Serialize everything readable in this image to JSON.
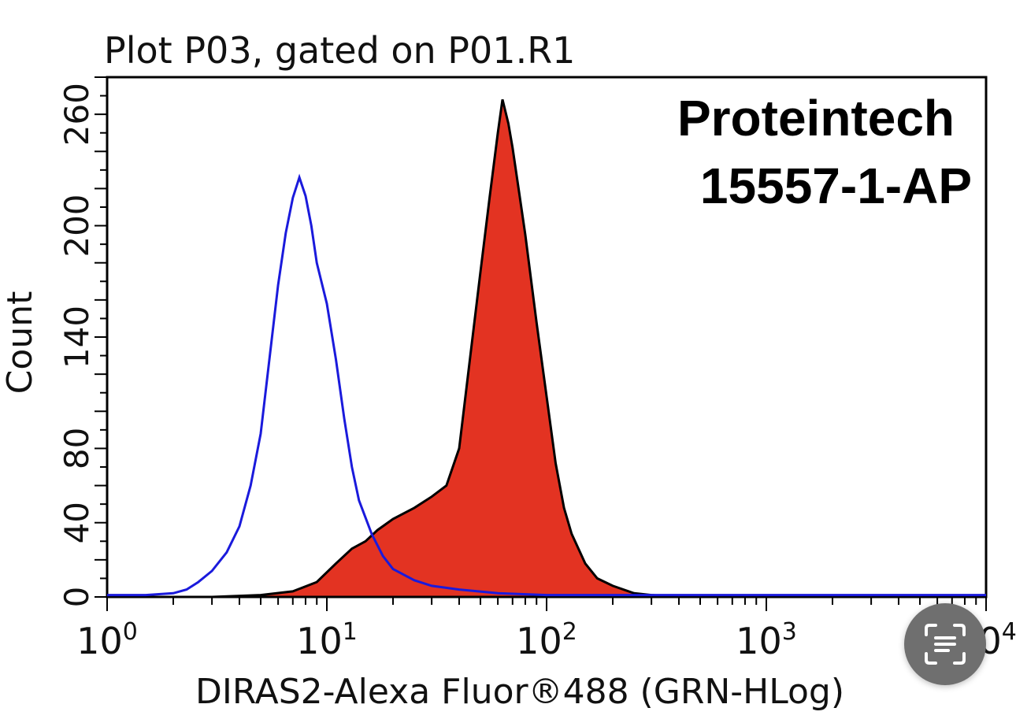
{
  "chart_data": {
    "type": "area",
    "title": "Plot P03, gated on P01.R1",
    "xlabel": "DIRAS2-Alexa Fluor®488 (GRN-HLog)",
    "ylabel": "Count",
    "x_scale": "log",
    "xlim": [
      1,
      10000
    ],
    "ylim": [
      0,
      280
    ],
    "x_ticks": [
      {
        "base": "10",
        "exp": "0"
      },
      {
        "base": "10",
        "exp": "1"
      },
      {
        "base": "10",
        "exp": "2"
      },
      {
        "base": "10",
        "exp": "3"
      },
      {
        "base": "10",
        "exp": "4"
      }
    ],
    "y_ticks": [
      "0",
      "40",
      "80",
      "140",
      "200",
      "260"
    ],
    "annotations": [
      "Proteintech",
      "15557-1-AP"
    ],
    "series": [
      {
        "color": "#1a1adc",
        "fill": "none",
        "points": [
          [
            1,
            1
          ],
          [
            1.5,
            1
          ],
          [
            2,
            2
          ],
          [
            2.3,
            4
          ],
          [
            2.6,
            8
          ],
          [
            3,
            14
          ],
          [
            3.5,
            24
          ],
          [
            4,
            38
          ],
          [
            4.5,
            60
          ],
          [
            5,
            88
          ],
          [
            5.5,
            130
          ],
          [
            6,
            168
          ],
          [
            6.5,
            196
          ],
          [
            7,
            215
          ],
          [
            7.5,
            226
          ],
          [
            8,
            216
          ],
          [
            8.5,
            200
          ],
          [
            9,
            180
          ],
          [
            10,
            158
          ],
          [
            11,
            128
          ],
          [
            12,
            96
          ],
          [
            13,
            70
          ],
          [
            14,
            52
          ],
          [
            16,
            34
          ],
          [
            18,
            22
          ],
          [
            20,
            15
          ],
          [
            25,
            9
          ],
          [
            30,
            6
          ],
          [
            40,
            4
          ],
          [
            60,
            2
          ],
          [
            100,
            1
          ],
          [
            300,
            1
          ],
          [
            10000,
            1
          ]
        ]
      },
      {
        "color": "#e33322",
        "fill": "#e33322",
        "points": [
          [
            1,
            0
          ],
          [
            3,
            0
          ],
          [
            5,
            1
          ],
          [
            7,
            3
          ],
          [
            9,
            8
          ],
          [
            11,
            18
          ],
          [
            13,
            26
          ],
          [
            15,
            30
          ],
          [
            17,
            36
          ],
          [
            20,
            42
          ],
          [
            25,
            48
          ],
          [
            30,
            54
          ],
          [
            35,
            60
          ],
          [
            40,
            80
          ],
          [
            45,
            130
          ],
          [
            50,
            175
          ],
          [
            55,
            215
          ],
          [
            60,
            250
          ],
          [
            63,
            268
          ],
          [
            67,
            255
          ],
          [
            70,
            242
          ],
          [
            75,
            218
          ],
          [
            80,
            195
          ],
          [
            90,
            148
          ],
          [
            100,
            108
          ],
          [
            110,
            72
          ],
          [
            120,
            48
          ],
          [
            130,
            34
          ],
          [
            150,
            18
          ],
          [
            170,
            10
          ],
          [
            200,
            6
          ],
          [
            250,
            2
          ],
          [
            300,
            1
          ],
          [
            400,
            0
          ],
          [
            10000,
            0
          ]
        ]
      }
    ]
  },
  "ocr_button": {
    "icon": "text-scan-icon"
  }
}
